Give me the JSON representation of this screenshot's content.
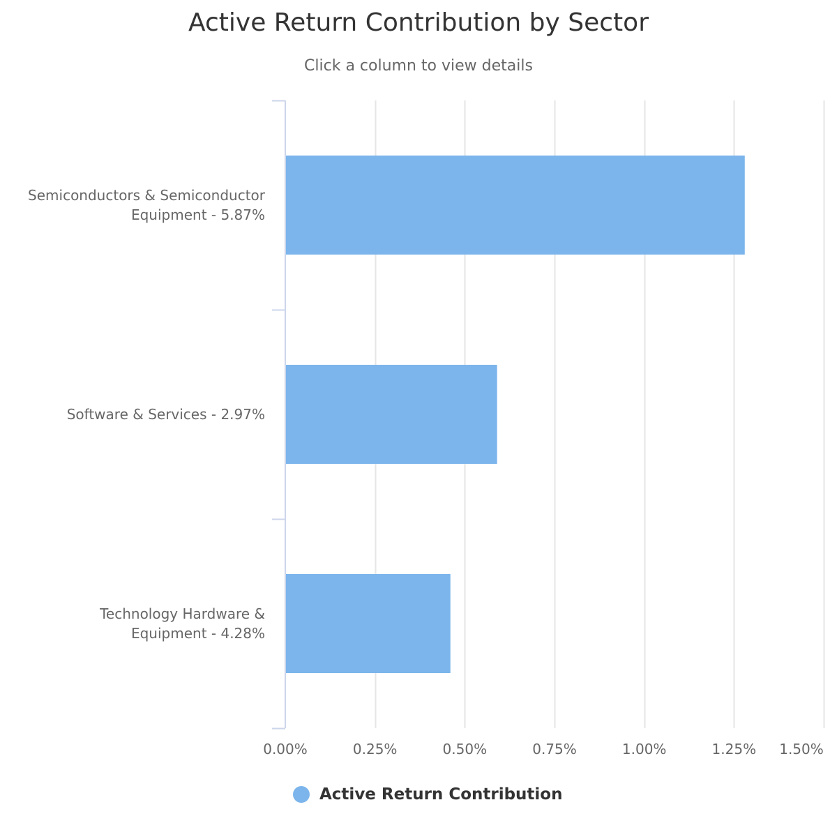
{
  "chart_data": {
    "type": "bar",
    "orientation": "horizontal",
    "title": "Active Return Contribution by Sector",
    "subtitle": "Click a column to view details",
    "categories": [
      "Semiconductors & Semiconductor Equipment - 5.87%",
      "Software & Services - 2.97%",
      "Technology Hardware & Equipment - 4.28%"
    ],
    "category_label_lines": [
      "Semiconductors & Semiconductor\nEquipment - 5.87%",
      "Software & Services - 2.97%",
      "Technology Hardware &\nEquipment - 4.28%"
    ],
    "series": [
      {
        "name": "Active Return Contribution",
        "values": [
          1.28,
          0.59,
          0.46
        ],
        "color": "#7cb5ec"
      }
    ],
    "xlim": [
      0,
      1.5
    ],
    "x_ticks": [
      0,
      0.25,
      0.5,
      0.75,
      1.0,
      1.25,
      1.5
    ],
    "x_tick_labels": [
      "0.00%",
      "0.25%",
      "0.50%",
      "0.75%",
      "1.00%",
      "1.25%",
      "1.50%"
    ],
    "grid": true,
    "legend": "bottom-center"
  },
  "legend": {
    "label": "Active Return Contribution",
    "color": "#7cb5ec"
  }
}
